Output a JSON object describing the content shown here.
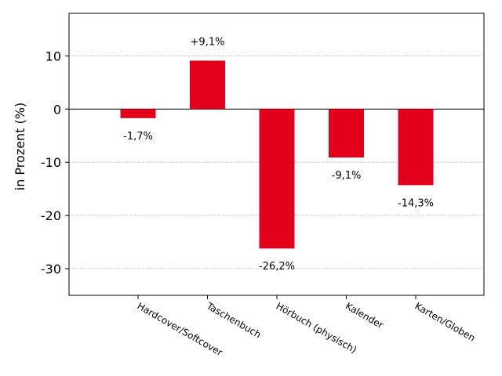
{
  "chart_data": {
    "type": "bar",
    "categories": [
      "Hardcover/Softcover",
      "Taschenbuch",
      "Hörbuch (physisch)",
      "Kalender",
      "Karten/Globen"
    ],
    "values": [
      -1.7,
      9.1,
      -26.2,
      -9.1,
      -14.3
    ],
    "data_labels": [
      "-1,7%",
      "+9,1%",
      "-26,2%",
      "-9,1%",
      "-14,3%"
    ],
    "title": "",
    "xlabel": "",
    "ylabel": "in Prozent (%)",
    "ylim": [
      -35,
      18
    ],
    "yticks": [
      10,
      0,
      -10,
      -20,
      -30
    ],
    "ytick_labels": [
      "10",
      "0",
      "-10",
      "-20",
      "-30"
    ],
    "grid": "y-dotted",
    "bar_color": "#e2001a",
    "grid_color": "#b0b0b0"
  }
}
